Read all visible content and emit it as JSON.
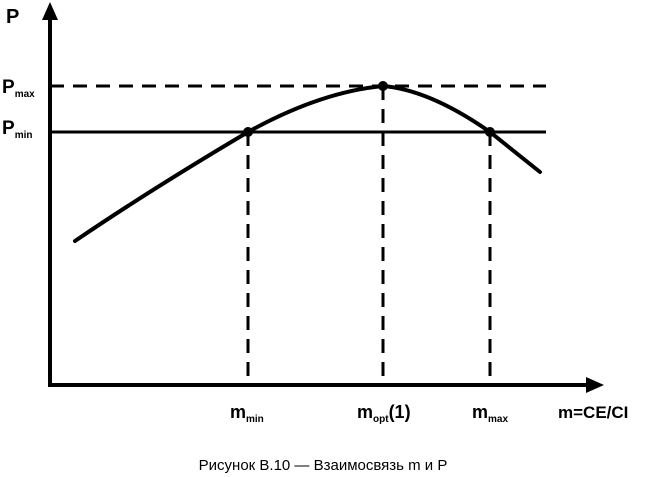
{
  "axes": {
    "y_label": "P",
    "x_label": "m=CE/CI"
  },
  "y_levels": {
    "p_max": {
      "base": "P",
      "sub": "max"
    },
    "p_min": {
      "base": "P",
      "sub": "min"
    }
  },
  "x_points": {
    "m_min": {
      "base": "m",
      "sub": "min",
      "suffix": ""
    },
    "m_opt": {
      "base": "m",
      "sub": "opt",
      "suffix": "(1)"
    },
    "m_max": {
      "base": "m",
      "sub": "max",
      "suffix": ""
    }
  },
  "caption": "Рисунок В.10 — Взаимосвязь m и P"
}
